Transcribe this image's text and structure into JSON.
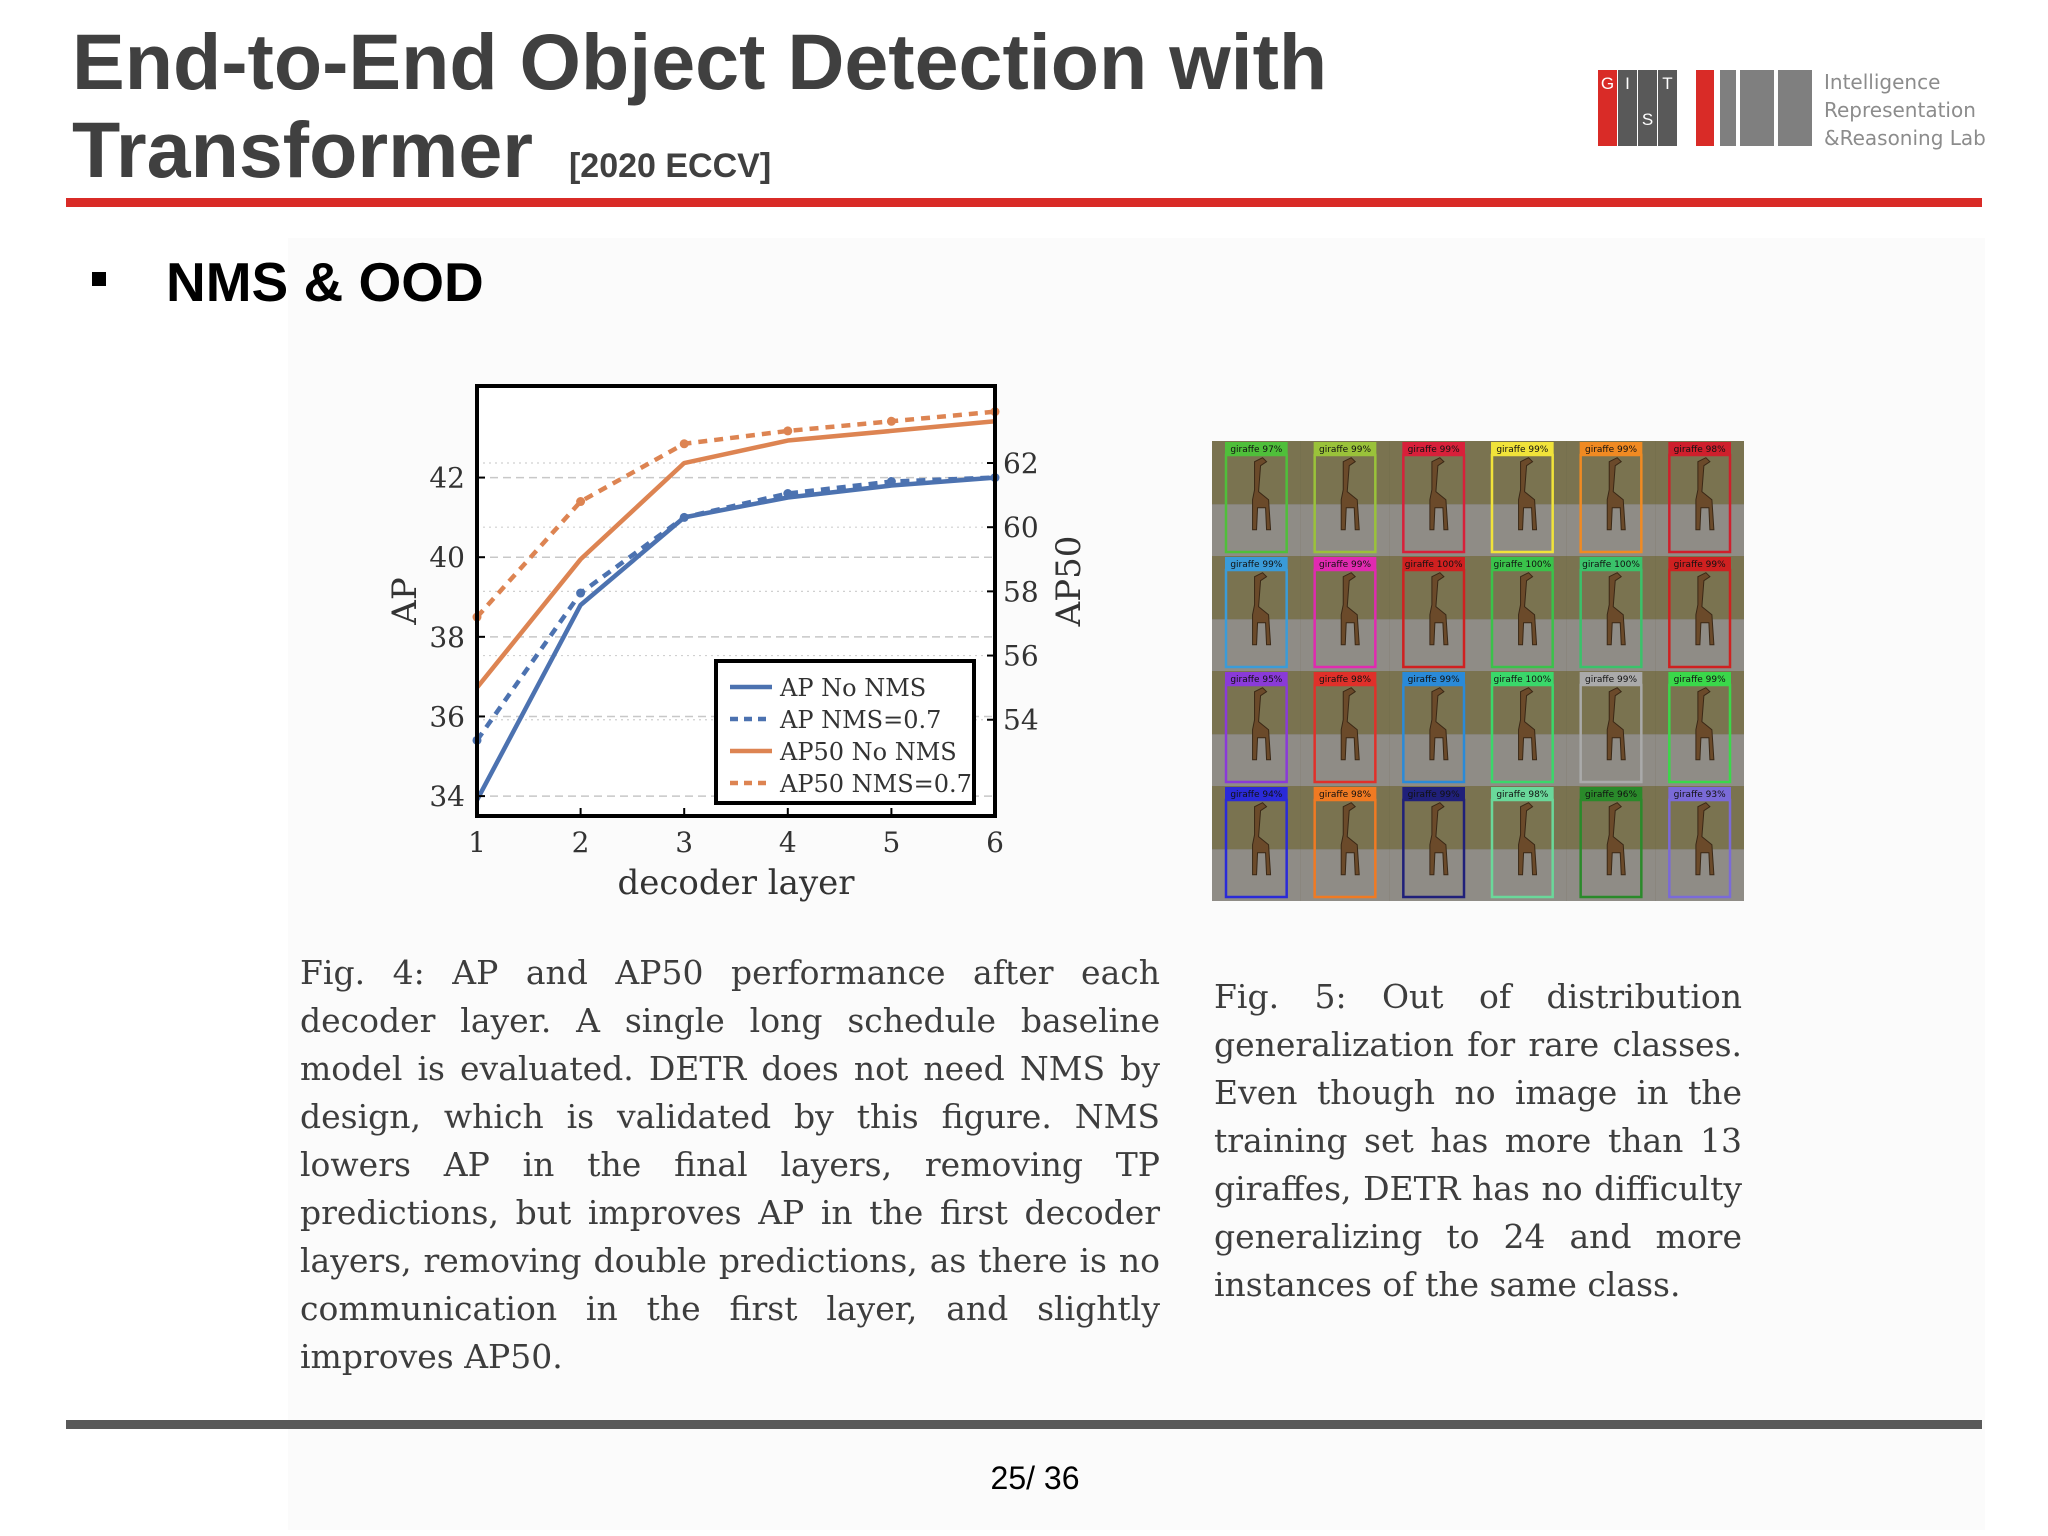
{
  "header": {
    "title": "End-to-End Object Detection with Transformer",
    "venue": "[2020 ECCV]",
    "logo_text_lines": [
      "Intelligence",
      "Representation",
      "&Reasoning Lab"
    ],
    "logo_letters": [
      "G",
      "I",
      "S",
      "T"
    ]
  },
  "section": {
    "heading": "NMS & OOD"
  },
  "chart_data": {
    "type": "line",
    "xlabel": "decoder layer",
    "ylabel": "AP",
    "y2label": "AP50",
    "x": [
      1,
      2,
      3,
      4,
      5,
      6
    ],
    "xlim": [
      1,
      6
    ],
    "ylim": [
      33.5,
      44.3
    ],
    "y2lim": [
      51.0,
      64.4
    ],
    "yticks": [
      34,
      36,
      38,
      40,
      42
    ],
    "y2ticks": [
      54,
      56,
      58,
      60,
      62
    ],
    "grid": true,
    "legend_position": "lower-right",
    "series": [
      {
        "name": "AP No NMS",
        "axis": "left",
        "style": "solid",
        "color": "#4c72b0",
        "values": [
          33.9,
          38.8,
          41.0,
          41.5,
          41.8,
          42.0
        ]
      },
      {
        "name": "AP NMS=0.7",
        "axis": "left",
        "style": "dashed",
        "color": "#4c72b0",
        "values": [
          35.4,
          39.1,
          41.0,
          41.6,
          41.9,
          42.0
        ]
      },
      {
        "name": "AP50 No NMS",
        "axis": "right",
        "style": "solid",
        "color": "#dd8452",
        "values": [
          55.0,
          59.0,
          62.0,
          62.7,
          63.0,
          63.3
        ]
      },
      {
        "name": "AP50 NMS=0.7",
        "axis": "right",
        "style": "dashed",
        "color": "#dd8452",
        "values": [
          57.2,
          60.8,
          62.6,
          63.0,
          63.3,
          63.6
        ]
      }
    ]
  },
  "figure5": {
    "labels": [
      "giraffe 97%",
      "giraffe 99%",
      "giraffe 99%",
      "giraffe 99%",
      "giraffe 99%",
      "giraffe 98%",
      "giraffe 99%",
      "giraffe 99%",
      "giraffe 100%",
      "giraffe 100%",
      "giraffe 100%",
      "giraffe 99%",
      "giraffe 95%",
      "giraffe 98%",
      "giraffe 99%",
      "giraffe 100%",
      "giraffe 99%",
      "giraffe 99%",
      "giraffe 94%",
      "giraffe 98%",
      "giraffe 99%",
      "giraffe 98%",
      "giraffe 96%",
      "giraffe 93%"
    ],
    "box_colors": [
      "#4fbf3a",
      "#9ac23a",
      "#d8203a",
      "#f1e33a",
      "#f08a22",
      "#cf1f2c",
      "#3a9bd8",
      "#e02ab0",
      "#d02020",
      "#3ac24a",
      "#3ac26a",
      "#cf2020",
      "#8a3ad8",
      "#e0302a",
      "#2a8ad8",
      "#3ad86a",
      "#aaaaaa",
      "#3ad84a",
      "#2a2ad8",
      "#f07a22",
      "#20207a",
      "#6ad89a",
      "#2a8a2a",
      "#7a6ad8"
    ]
  },
  "captions": {
    "fig4": "Fig. 4: AP and AP50 performance after each decoder layer. A single long schedule baseline model is evaluated. DETR does not need NMS by design, which is validated by this figure. NMS lowers AP in the final layers, removing TP predictions, but improves AP in the first decoder layers, removing double predictions, as there is no communication in the first layer, and slightly improves AP50.",
    "fig5": "Fig. 5: Out of distribution generalization for rare classes. Even though no image in the training set has more than 13 giraffes, DETR has no difficulty generalizing to 24 and more instances of the same class."
  },
  "footer": {
    "page": "25/ 36"
  }
}
